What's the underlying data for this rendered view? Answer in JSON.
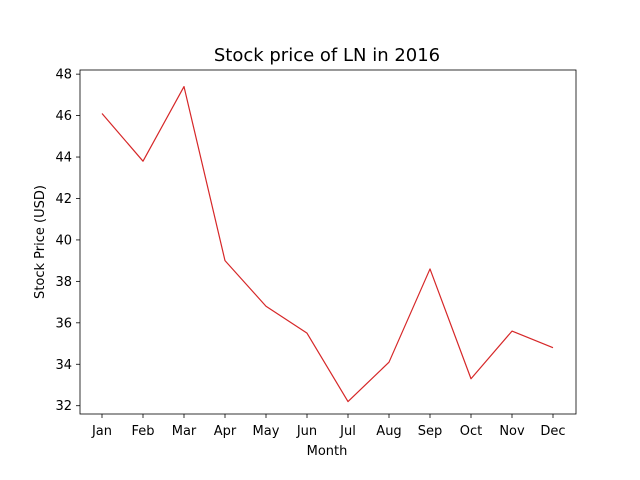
{
  "chart_data": {
    "type": "line",
    "title": "Stock price of LN in 2016",
    "xlabel": "Month",
    "ylabel": "Stock Price (USD)",
    "categories": [
      "Jan",
      "Feb",
      "Mar",
      "Apr",
      "May",
      "Jun",
      "Jul",
      "Aug",
      "Sep",
      "Oct",
      "Nov",
      "Dec"
    ],
    "series": [
      {
        "values": [
          46.1,
          43.8,
          47.4,
          39.0,
          36.8,
          35.5,
          32.2,
          34.1,
          38.6,
          33.3,
          35.6,
          34.8
        ],
        "color": "#d62728"
      }
    ],
    "ylim": [
      31.6,
      48.2
    ],
    "yticks": [
      32,
      34,
      36,
      38,
      40,
      42,
      44,
      46,
      48
    ],
    "grid": false,
    "legend": "none"
  }
}
